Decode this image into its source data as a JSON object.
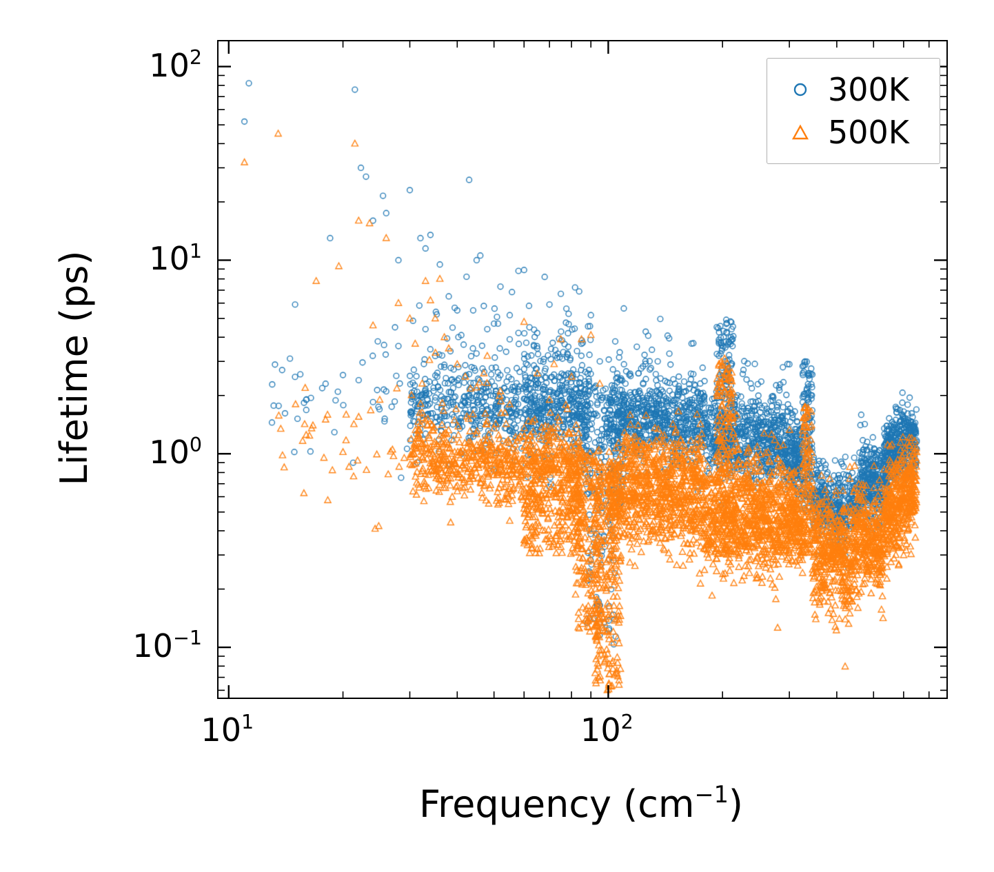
{
  "figure": {
    "ylabel": "Lifetime (ps)",
    "xlabel_prefix": "Frequency (cm",
    "xlabel_sup": "−1",
    "xlabel_suffix": ")"
  },
  "chart_data": {
    "type": "scatter",
    "title": "",
    "xlabel": "Frequency (cm^-1)",
    "ylabel": "Lifetime (ps)",
    "xscale": "log",
    "yscale": "log",
    "xlim": [
      9.4,
      778
    ],
    "ylim": [
      0.055,
      135
    ],
    "grid": false,
    "legend_position": "upper right",
    "x_major_ticks": [
      {
        "value": 10,
        "exp": "1"
      },
      {
        "value": 100,
        "exp": "2"
      }
    ],
    "y_major_ticks": [
      {
        "value": 100,
        "exp": "2"
      },
      {
        "value": 10,
        "exp": "1"
      },
      {
        "value": 1,
        "exp": "0"
      },
      {
        "value": 0.1,
        "exp": "−1"
      }
    ],
    "x_minor_ticks": [
      20,
      30,
      40,
      50,
      60,
      70,
      80,
      90,
      200,
      300,
      400,
      500,
      600,
      700
    ],
    "y_minor_ticks": [
      0.06,
      0.07,
      0.08,
      0.09,
      0.2,
      0.3,
      0.4,
      0.5,
      0.6,
      0.7,
      0.8,
      0.9,
      2,
      3,
      4,
      5,
      6,
      7,
      8,
      9,
      20,
      30,
      40,
      50,
      60,
      70,
      80,
      90
    ],
    "series": [
      {
        "name": "300K",
        "color": "#1f77b4",
        "marker": "circle",
        "points": [
          [
            11.3,
            82
          ],
          [
            11.0,
            52
          ],
          [
            21.5,
            76
          ],
          [
            22.3,
            30
          ],
          [
            23.0,
            27
          ],
          [
            25.5,
            21.5
          ],
          [
            30,
            23
          ],
          [
            43,
            26
          ],
          [
            18.5,
            13
          ],
          [
            26,
            17.5
          ],
          [
            24,
            16
          ],
          [
            28,
            10
          ],
          [
            32,
            13
          ],
          [
            33,
            11.5
          ],
          [
            34,
            13.5
          ],
          [
            36,
            9.5
          ],
          [
            38,
            6.5
          ],
          [
            40,
            5.5
          ],
          [
            45,
            10
          ],
          [
            52,
            7.3
          ],
          [
            58,
            8.8
          ],
          [
            60,
            8.9
          ],
          [
            47,
            5.8
          ],
          [
            50,
            4.7
          ],
          [
            55,
            3.9
          ],
          [
            62,
            4.5
          ],
          [
            65,
            3.5
          ],
          [
            70,
            5.9
          ],
          [
            75,
            6.7
          ],
          [
            78,
            3.3
          ],
          [
            85,
            3.7
          ],
          [
            14.5,
            3.1
          ],
          [
            13,
            1.45
          ],
          [
            16,
            1.9
          ],
          [
            18,
            2.3
          ],
          [
            20,
            2.55
          ],
          [
            22,
            2.4
          ],
          [
            24,
            1.85
          ],
          [
            26,
            2.1
          ],
          [
            28,
            3.6
          ],
          [
            33,
            4.4
          ],
          [
            35,
            3.2
          ],
          [
            37,
            2.8
          ],
          [
            41,
            4.1
          ],
          [
            44,
            3.5
          ],
          [
            48,
            4.4
          ],
          [
            55,
            5.2
          ],
          [
            68,
            8.2
          ],
          [
            90,
            5.2
          ],
          [
            95,
            3.0
          ],
          [
            110,
            2.9
          ],
          [
            120,
            2.6
          ],
          [
            135,
            3.0
          ],
          [
            150,
            2.3
          ],
          [
            300,
            2.9
          ],
          [
            330,
            3.0
          ]
        ],
        "clusters": [
          {
            "t": "g",
            "x": [
              13,
              30
            ],
            "y": [
              2.0,
              2.0
            ],
            "s": 0.18,
            "n": 40
          },
          {
            "t": "g",
            "x": [
              30,
              60
            ],
            "y": [
              1.9,
              1.65
            ],
            "s": 0.1,
            "n": 320
          },
          {
            "t": "g",
            "x": [
              30,
              60
            ],
            "y": [
              2.3,
              2.0
            ],
            "s": 0.22,
            "n": 90
          },
          {
            "t": "g",
            "x": [
              60,
              90
            ],
            "y": [
              1.75,
              1.7
            ],
            "s": 0.12,
            "n": 380
          },
          {
            "t": "g",
            "x": [
              60,
              90
            ],
            "y": [
              2.6,
              2.6
            ],
            "s": 0.25,
            "n": 80
          },
          {
            "t": "u",
            "x": [
              86,
              110
            ],
            "y": [
              0.55,
              2.3
            ],
            "n": 180
          },
          {
            "t": "u",
            "x": [
              88,
              105
            ],
            "y": [
              0.1,
              0.55
            ],
            "n": 60
          },
          {
            "t": "g",
            "x": [
              100,
              180
            ],
            "y": [
              1.55,
              1.45
            ],
            "s": 0.1,
            "n": 550
          },
          {
            "t": "g",
            "x": [
              100,
              180
            ],
            "y": [
              2.0,
              1.9
            ],
            "s": 0.2,
            "n": 120
          },
          {
            "t": "u",
            "x": [
              193,
              214
            ],
            "y": [
              0.95,
              5.0
            ],
            "n": 130
          },
          {
            "t": "g",
            "x": [
              180,
              300
            ],
            "y": [
              1.25,
              1.05
            ],
            "s": 0.1,
            "n": 550
          },
          {
            "t": "g",
            "x": [
              215,
              300
            ],
            "y": [
              1.6,
              1.4
            ],
            "s": 0.15,
            "n": 100
          },
          {
            "t": "u",
            "x": [
              325,
              345
            ],
            "y": [
              0.5,
              3.0
            ],
            "n": 120
          },
          {
            "t": "g",
            "x": [
              300,
              325
            ],
            "y": [
              1.0,
              0.9
            ],
            "s": 0.1,
            "n": 150
          },
          {
            "t": "g",
            "x": [
              345,
              430
            ],
            "y": [
              0.62,
              0.48
            ],
            "s": 0.1,
            "n": 300
          },
          {
            "t": "g",
            "x": [
              430,
              460
            ],
            "y": [
              0.55,
              0.6
            ],
            "s": 0.08,
            "n": 80
          },
          {
            "t": "g",
            "x": [
              460,
              530
            ],
            "y": [
              0.75,
              0.65
            ],
            "s": 0.1,
            "n": 260
          },
          {
            "t": "g",
            "x": [
              530,
              580
            ],
            "y": [
              0.9,
              1.1
            ],
            "s": 0.09,
            "n": 220
          },
          {
            "t": "g",
            "x": [
              580,
              650
            ],
            "y": [
              1.1,
              1.2
            ],
            "s": 0.09,
            "n": 220
          }
        ]
      },
      {
        "name": "500K",
        "color": "#ff7f0e",
        "marker": "triangle",
        "points": [
          [
            11,
            32
          ],
          [
            13.5,
            45
          ],
          [
            21.5,
            40
          ],
          [
            17,
            7.8
          ],
          [
            19.5,
            9.3
          ],
          [
            22,
            16
          ],
          [
            23.5,
            15.5
          ],
          [
            26,
            13
          ],
          [
            28,
            6
          ],
          [
            30,
            5
          ],
          [
            24,
            4.6
          ],
          [
            31,
            3.7
          ],
          [
            33,
            7.8
          ],
          [
            34,
            6.2
          ],
          [
            36,
            8
          ],
          [
            35,
            5
          ],
          [
            37,
            4
          ],
          [
            40,
            2.9
          ],
          [
            42,
            2.5
          ],
          [
            45,
            2.2
          ],
          [
            14,
            0.85
          ],
          [
            15,
            1.8
          ],
          [
            16,
            1.25
          ],
          [
            18,
            1.5
          ],
          [
            20,
            1.02
          ],
          [
            22,
            1.55
          ],
          [
            25,
            1.9
          ],
          [
            27,
            1.05
          ],
          [
            29,
            0.95
          ],
          [
            48,
            3.2
          ],
          [
            52,
            2.1
          ],
          [
            55,
            1.8
          ],
          [
            60,
            4.8
          ],
          [
            65,
            2.6
          ],
          [
            70,
            1.9
          ],
          [
            75,
            3.9
          ],
          [
            80,
            2.5
          ],
          [
            85,
            3.9
          ],
          [
            50,
            1.35
          ],
          [
            58,
            1.2
          ],
          [
            44,
            1.6
          ],
          [
            47,
            2.6
          ],
          [
            64,
            1.5
          ],
          [
            72,
            2.9
          ],
          [
            78,
            1.7
          ],
          [
            90,
            4.1
          ],
          [
            95,
            2.3
          ],
          [
            55,
            0.45
          ],
          [
            60,
            0.52
          ],
          [
            68,
            0.4
          ],
          [
            75,
            0.33
          ]
        ],
        "clusters": [
          {
            "t": "g",
            "x": [
              13,
              30
            ],
            "y": [
              1.2,
              1.0
            ],
            "s": 0.2,
            "n": 30
          },
          {
            "t": "g",
            "x": [
              30,
              60
            ],
            "y": [
              0.92,
              0.85
            ],
            "s": 0.09,
            "n": 380
          },
          {
            "t": "g",
            "x": [
              30,
              60
            ],
            "y": [
              1.3,
              1.1
            ],
            "s": 0.18,
            "n": 80
          },
          {
            "t": "g",
            "x": [
              60,
              85
            ],
            "y": [
              0.85,
              0.8
            ],
            "s": 0.12,
            "n": 350
          },
          {
            "t": "u",
            "x": [
              60,
              85
            ],
            "y": [
              0.3,
              0.65
            ],
            "n": 140
          },
          {
            "t": "u",
            "x": [
              82,
              96
            ],
            "y": [
              0.12,
              1.05
            ],
            "n": 220
          },
          {
            "t": "u",
            "x": [
              92,
              108
            ],
            "y": [
              0.06,
              0.9
            ],
            "n": 240
          },
          {
            "t": "g",
            "x": [
              100,
              180
            ],
            "y": [
              0.62,
              0.55
            ],
            "s": 0.13,
            "n": 650
          },
          {
            "t": "g",
            "x": [
              110,
              180
            ],
            "y": [
              0.95,
              0.9
            ],
            "s": 0.1,
            "n": 200
          },
          {
            "t": "u",
            "x": [
              193,
              214
            ],
            "y": [
              0.45,
              3.1
            ],
            "n": 150
          },
          {
            "t": "g",
            "x": [
              180,
              300
            ],
            "y": [
              0.47,
              0.4
            ],
            "s": 0.13,
            "n": 650
          },
          {
            "t": "g",
            "x": [
              215,
              310
            ],
            "y": [
              0.75,
              0.6
            ],
            "s": 0.12,
            "n": 150
          },
          {
            "t": "u",
            "x": [
              325,
              345
            ],
            "y": [
              0.3,
              1.75
            ],
            "n": 120
          },
          {
            "t": "g",
            "x": [
              300,
              325
            ],
            "y": [
              0.45,
              0.4
            ],
            "s": 0.12,
            "n": 130
          },
          {
            "t": "g",
            "x": [
              345,
              440
            ],
            "y": [
              0.32,
              0.28
            ],
            "s": 0.15,
            "n": 400
          },
          {
            "t": "g",
            "x": [
              440,
              530
            ],
            "y": [
              0.36,
              0.32
            ],
            "s": 0.13,
            "n": 320
          },
          {
            "t": "g",
            "x": [
              530,
              600
            ],
            "y": [
              0.45,
              0.6
            ],
            "s": 0.13,
            "n": 260
          },
          {
            "t": "g",
            "x": [
              600,
              650
            ],
            "y": [
              0.6,
              0.68
            ],
            "s": 0.12,
            "n": 160
          }
        ]
      }
    ]
  }
}
